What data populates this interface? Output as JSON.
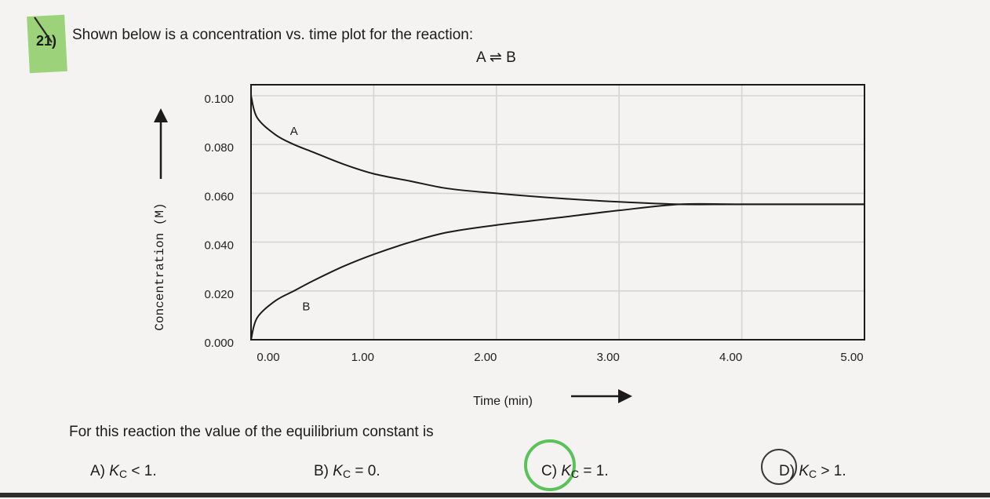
{
  "question": {
    "number": "21)",
    "text": "Shown below is a concentration vs. time plot for the reaction:",
    "reaction": "A ⇌ B",
    "prompt": "For this reaction the value of the equilibrium constant is"
  },
  "answers": [
    {
      "letter": "A)",
      "symbol": "K",
      "sub": "C",
      "rest": " < 1."
    },
    {
      "letter": "B)",
      "symbol": "K",
      "sub": "C",
      "rest": " = 0."
    },
    {
      "letter": "C)",
      "symbol": "K",
      "sub": "C",
      "rest": " = 1."
    },
    {
      "letter": "D)",
      "symbol": "K",
      "sub": "C",
      "rest": " > 1."
    }
  ],
  "colors": {
    "highlight": "#9bd27a",
    "circle_selected": "#5bc25a",
    "curve": "#1b1b1b"
  },
  "chart_data": {
    "type": "line",
    "xlabel": "Time (min)",
    "ylabel": "Concentration (M)",
    "xlim": [
      0,
      5
    ],
    "ylim": [
      0,
      0.1
    ],
    "x_ticks": [
      "0.00",
      "1.00",
      "2.00",
      "3.00",
      "4.00",
      "5.00"
    ],
    "y_ticks": [
      "0.000",
      "0.020",
      "0.040",
      "0.060",
      "0.080",
      "0.100"
    ],
    "grid": true,
    "series": [
      {
        "name": "A",
        "x": [
          0,
          0.05,
          0.2,
          0.35,
          0.5,
          0.75,
          1.0,
          1.3,
          1.6,
          2.0,
          2.5,
          3.0,
          3.5,
          4.0,
          5.0
        ],
        "y": [
          0.1,
          0.091,
          0.084,
          0.08,
          0.077,
          0.072,
          0.068,
          0.065,
          0.062,
          0.06,
          0.058,
          0.0565,
          0.0555,
          0.0555,
          0.0555
        ]
      },
      {
        "name": "B",
        "x": [
          0,
          0.05,
          0.2,
          0.35,
          0.5,
          0.75,
          1.0,
          1.3,
          1.6,
          2.0,
          2.5,
          3.0,
          3.5,
          4.0,
          5.0
        ],
        "y": [
          0.0,
          0.009,
          0.016,
          0.02,
          0.024,
          0.03,
          0.035,
          0.04,
          0.044,
          0.047,
          0.05,
          0.053,
          0.0555,
          0.0555,
          0.0555
        ]
      }
    ]
  }
}
